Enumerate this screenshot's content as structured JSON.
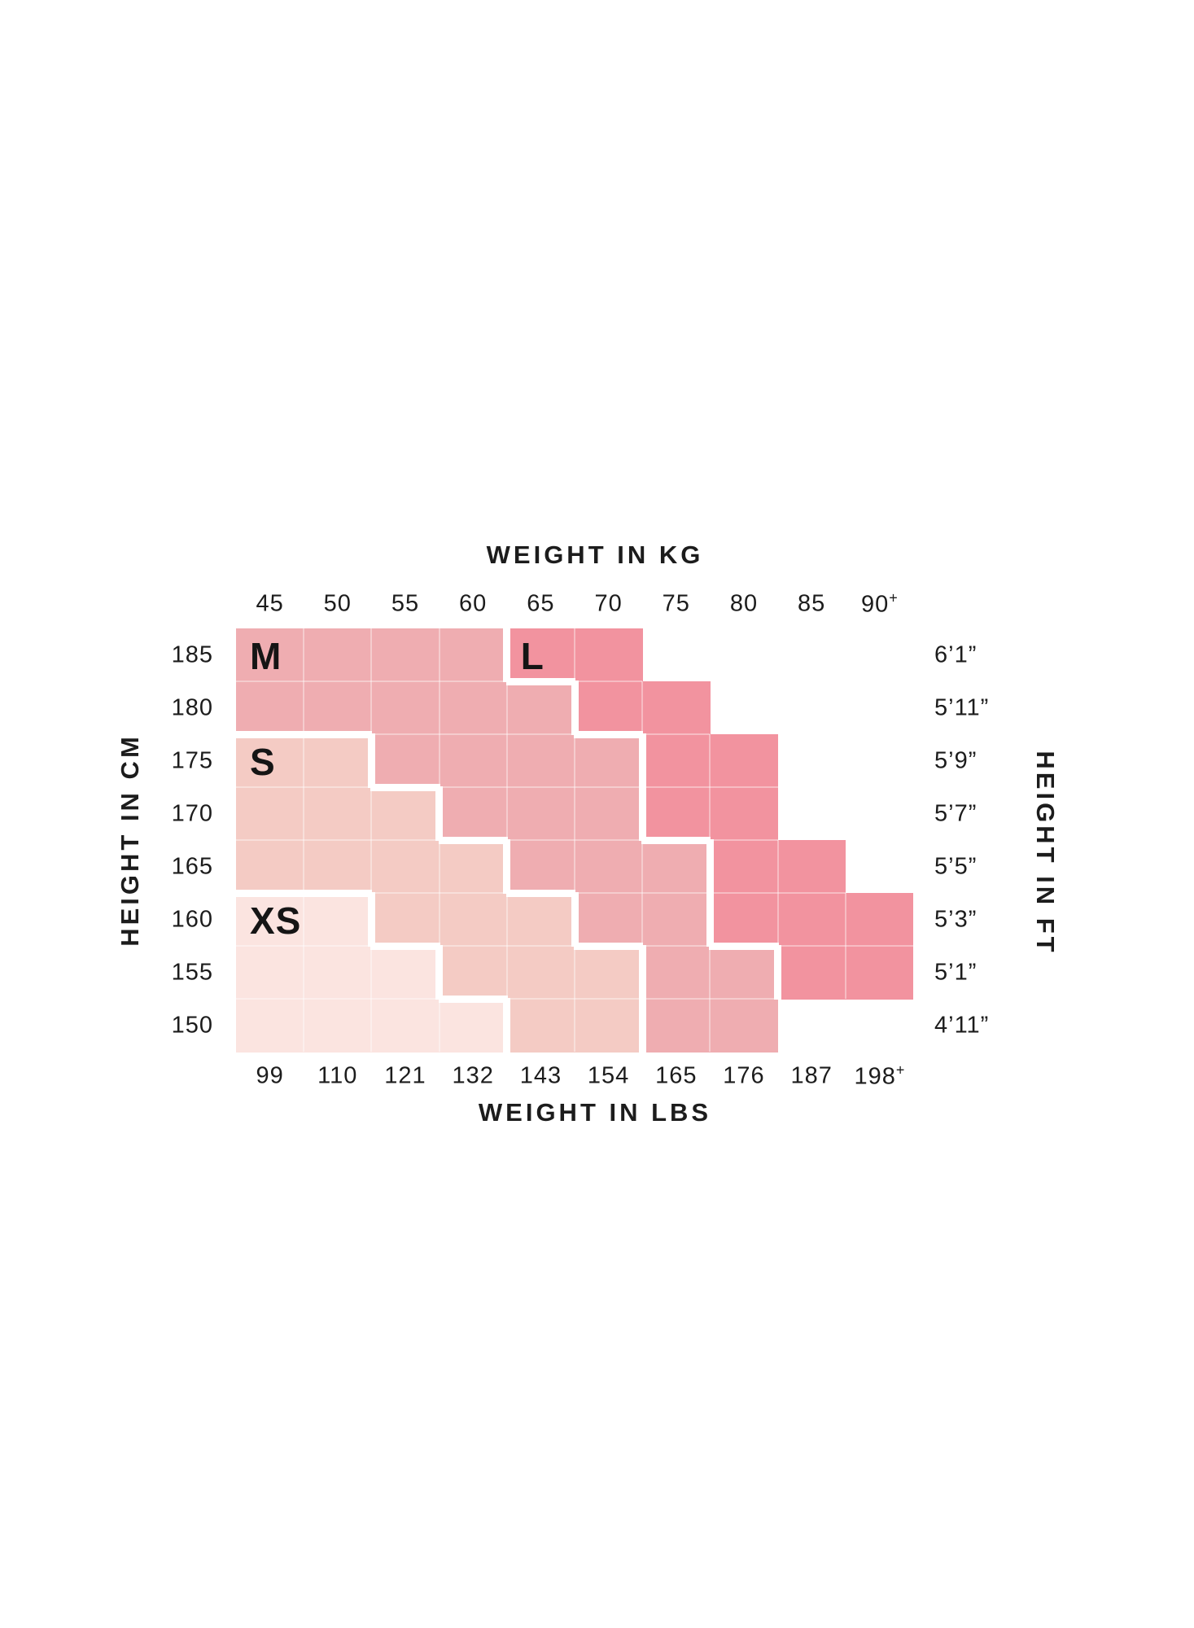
{
  "chart": {
    "top_axis": {
      "title": "WEIGHT IN KG",
      "ticks": [
        "45",
        "50",
        "55",
        "60",
        "65",
        "70",
        "75",
        "80",
        "85",
        "90+"
      ]
    },
    "bottom_axis": {
      "title": "WEIGHT IN LBS",
      "ticks": [
        "99",
        "110",
        "121",
        "132",
        "143",
        "154",
        "165",
        "176",
        "187",
        "198+"
      ]
    },
    "left_axis": {
      "title": "HEIGHT IN CM",
      "ticks": [
        "185",
        "180",
        "175",
        "170",
        "165",
        "160",
        "155",
        "150"
      ]
    },
    "right_axis": {
      "title": "HEIGHT IN FT",
      "ticks": [
        "6’1”",
        "5’11”",
        "5’9”",
        "5’7”",
        "5’5”",
        "5’3”",
        "5’1”",
        "4’11”"
      ]
    }
  },
  "chart_data": {
    "type": "heatmap",
    "title": "WEIGHT IN KG",
    "xlabel_top": "WEIGHT IN KG",
    "xlabel_bottom": "WEIGHT IN LBS",
    "ylabel_left": "HEIGHT IN CM",
    "ylabel_right": "HEIGHT IN FT",
    "x_weight_kg": [
      45,
      50,
      55,
      60,
      65,
      70,
      75,
      80,
      85,
      90
    ],
    "x_weight_lbs": [
      99,
      110,
      121,
      132,
      143,
      154,
      165,
      176,
      187,
      198
    ],
    "x_last_is_plus": true,
    "y_height_cm": [
      185,
      180,
      175,
      170,
      165,
      160,
      155,
      150
    ],
    "y_height_ft": [
      "6’1”",
      "5’11”",
      "5’9”",
      "5’7”",
      "5’5”",
      "5’3”",
      "5’1”",
      "4’11”"
    ],
    "legend": [
      "XS",
      "S",
      "M",
      "L"
    ],
    "colors": {
      "XS": "#FBE4E0",
      "S": "#F4CBC4",
      "M": "#EFADB1",
      "L": "#F2939F"
    },
    "grid": [
      [
        "M",
        "M",
        "M",
        "M",
        "L",
        "L",
        "",
        "",
        "",
        ""
      ],
      [
        "M",
        "M",
        "M",
        "M",
        "M",
        "L",
        "L",
        "",
        "",
        ""
      ],
      [
        "S",
        "S",
        "M",
        "M",
        "M",
        "M",
        "L",
        "L",
        "",
        ""
      ],
      [
        "S",
        "S",
        "S",
        "M",
        "M",
        "M",
        "L",
        "L",
        "",
        ""
      ],
      [
        "S",
        "S",
        "S",
        "S",
        "M",
        "M",
        "M",
        "L",
        "L",
        ""
      ],
      [
        "XS",
        "XS",
        "S",
        "S",
        "S",
        "M",
        "M",
        "L",
        "L",
        "L"
      ],
      [
        "XS",
        "XS",
        "XS",
        "S",
        "S",
        "S",
        "M",
        "M",
        "L",
        "L"
      ],
      [
        "XS",
        "XS",
        "XS",
        "XS",
        "S",
        "S",
        "M",
        "M",
        "",
        ""
      ]
    ],
    "region_labels": [
      {
        "size": "M",
        "row": 0,
        "col": 0
      },
      {
        "size": "L",
        "row": 0,
        "col": 4
      },
      {
        "size": "S",
        "row": 2,
        "col": 0
      },
      {
        "size": "XS",
        "row": 5,
        "col": 0
      }
    ]
  },
  "layout_note_text_color": "#1c1c1c"
}
